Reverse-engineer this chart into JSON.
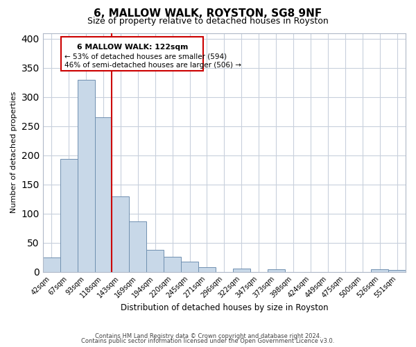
{
  "title": "6, MALLOW WALK, ROYSTON, SG8 9NF",
  "subtitle": "Size of property relative to detached houses in Royston",
  "xlabel": "Distribution of detached houses by size in Royston",
  "ylabel": "Number of detached properties",
  "footer_line1": "Contains HM Land Registry data © Crown copyright and database right 2024.",
  "footer_line2": "Contains public sector information licensed under the Open Government Licence v3.0.",
  "bin_labels": [
    "42sqm",
    "67sqm",
    "93sqm",
    "118sqm",
    "143sqm",
    "169sqm",
    "194sqm",
    "220sqm",
    "245sqm",
    "271sqm",
    "296sqm",
    "322sqm",
    "347sqm",
    "373sqm",
    "398sqm",
    "424sqm",
    "449sqm",
    "475sqm",
    "500sqm",
    "526sqm",
    "551sqm"
  ],
  "bin_values": [
    25,
    194,
    329,
    265,
    130,
    87,
    38,
    26,
    18,
    8,
    0,
    5,
    0,
    4,
    0,
    0,
    0,
    0,
    0,
    4,
    3
  ],
  "bar_color": "#c8d8e8",
  "bar_edge_color": "#7090b0",
  "vline_color": "#cc0000",
  "vline_index": 3.5,
  "annotation_title": "6 MALLOW WALK: 122sqm",
  "annotation_line2": "← 53% of detached houses are smaller (594)",
  "annotation_line3": "46% of semi-detached houses are larger (506) →",
  "annotation_box_edgecolor": "#cc0000",
  "ylim": [
    0,
    410
  ],
  "yticks": [
    0,
    50,
    100,
    150,
    200,
    250,
    300,
    350,
    400
  ]
}
